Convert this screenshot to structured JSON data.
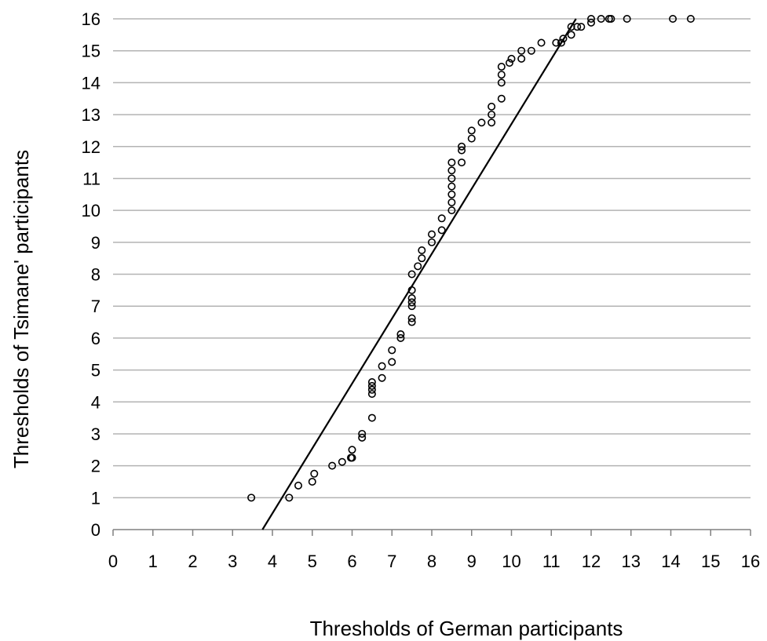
{
  "chart_data": {
    "type": "scatter",
    "title": "",
    "xlabel": "Thresholds of German participants",
    "ylabel": "Thresholds of Tsimane' participants",
    "xlim": [
      0,
      16
    ],
    "ylim": [
      0,
      16
    ],
    "xticks": [
      "0",
      "1",
      "2",
      "3",
      "4",
      "5",
      "6",
      "7",
      "8",
      "9",
      "10",
      "11",
      "12",
      "13",
      "14",
      "15",
      "16"
    ],
    "yticks": [
      "0",
      "1",
      "2",
      "3",
      "4",
      "5",
      "6",
      "7",
      "8",
      "9",
      "10",
      "11",
      "12",
      "13",
      "14",
      "15",
      "16"
    ],
    "grid": "horizontal",
    "legend": "none",
    "series": [
      {
        "marker": "open-circle",
        "points": [
          [
            3.47,
            1.0
          ],
          [
            4.42,
            1.0
          ],
          [
            4.65,
            1.38
          ],
          [
            5.0,
            1.5
          ],
          [
            5.05,
            1.75
          ],
          [
            5.5,
            2.0
          ],
          [
            5.75,
            2.12
          ],
          [
            5.97,
            2.25
          ],
          [
            6.0,
            2.25
          ],
          [
            6.0,
            2.5
          ],
          [
            6.25,
            2.88
          ],
          [
            6.25,
            3.0
          ],
          [
            6.5,
            3.5
          ],
          [
            6.5,
            4.25
          ],
          [
            6.5,
            4.38
          ],
          [
            6.5,
            4.5
          ],
          [
            6.5,
            4.62
          ],
          [
            6.75,
            4.75
          ],
          [
            6.75,
            5.12
          ],
          [
            7.0,
            5.25
          ],
          [
            7.0,
            5.62
          ],
          [
            7.22,
            6.0
          ],
          [
            7.22,
            6.12
          ],
          [
            7.5,
            6.5
          ],
          [
            7.5,
            6.62
          ],
          [
            7.5,
            7.0
          ],
          [
            7.5,
            7.12
          ],
          [
            7.5,
            7.25
          ],
          [
            7.5,
            7.5
          ],
          [
            7.5,
            8.0
          ],
          [
            7.65,
            8.25
          ],
          [
            7.75,
            8.5
          ],
          [
            7.75,
            8.75
          ],
          [
            8.0,
            9.0
          ],
          [
            8.0,
            9.25
          ],
          [
            8.25,
            9.38
          ],
          [
            8.25,
            9.75
          ],
          [
            8.5,
            10.0
          ],
          [
            8.5,
            10.25
          ],
          [
            8.5,
            10.5
          ],
          [
            8.5,
            10.75
          ],
          [
            8.5,
            11.0
          ],
          [
            8.5,
            11.25
          ],
          [
            8.5,
            11.5
          ],
          [
            8.75,
            11.5
          ],
          [
            8.75,
            11.88
          ],
          [
            8.75,
            12.0
          ],
          [
            9.0,
            12.25
          ],
          [
            9.0,
            12.5
          ],
          [
            9.25,
            12.75
          ],
          [
            9.5,
            12.75
          ],
          [
            9.5,
            13.0
          ],
          [
            9.5,
            13.25
          ],
          [
            9.75,
            13.5
          ],
          [
            9.75,
            14.0
          ],
          [
            9.75,
            14.25
          ],
          [
            9.75,
            14.5
          ],
          [
            9.95,
            14.62
          ],
          [
            10.0,
            14.75
          ],
          [
            10.25,
            14.75
          ],
          [
            10.25,
            15.0
          ],
          [
            10.5,
            15.0
          ],
          [
            10.75,
            15.25
          ],
          [
            11.12,
            15.25
          ],
          [
            11.25,
            15.25
          ],
          [
            11.3,
            15.38
          ],
          [
            11.5,
            15.5
          ],
          [
            11.5,
            15.75
          ],
          [
            11.65,
            15.75
          ],
          [
            11.75,
            15.75
          ],
          [
            12.0,
            15.88
          ],
          [
            12.0,
            16.0
          ],
          [
            12.25,
            16.0
          ],
          [
            12.45,
            16.0
          ],
          [
            12.5,
            16.0
          ],
          [
            12.9,
            16.0
          ],
          [
            14.05,
            16.0
          ],
          [
            14.5,
            16.0
          ]
        ]
      }
    ],
    "fit_line": {
      "x": [
        3.75,
        11.62
      ],
      "y": [
        0,
        16
      ]
    },
    "colors": {
      "marker": "#000000",
      "line": "#000000",
      "grid": "#b3b3b3",
      "axis": "#808080"
    }
  }
}
